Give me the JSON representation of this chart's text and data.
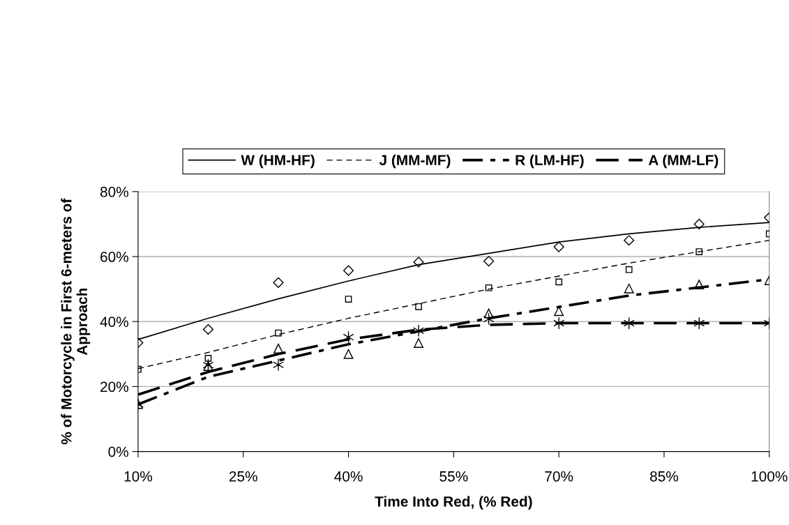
{
  "chart_data": {
    "type": "scatter",
    "xlabel": "Time Into Red, (% Red)",
    "ylabel": "% of Motorcycle in First 6-meters of\nApproach",
    "x": [
      10,
      20,
      30,
      40,
      50,
      60,
      70,
      80,
      90,
      100
    ],
    "xlim": [
      10,
      100
    ],
    "xticks": [
      {
        "value": 10,
        "label": "10%"
      },
      {
        "value": 25,
        "label": "25%"
      },
      {
        "value": 40,
        "label": "40%"
      },
      {
        "value": 55,
        "label": "55%"
      },
      {
        "value": 70,
        "label": "70%"
      },
      {
        "value": 85,
        "label": "85%"
      },
      {
        "value": 100,
        "label": "100%"
      }
    ],
    "ylim": [
      0,
      80
    ],
    "yticks": [
      {
        "value": 0,
        "label": "0%"
      },
      {
        "value": 20,
        "label": "20%"
      },
      {
        "value": 40,
        "label": "40%"
      },
      {
        "value": 60,
        "label": "60%"
      },
      {
        "value": 80,
        "label": "80%"
      }
    ],
    "grid": "y",
    "legend": "top",
    "series": [
      {
        "marker": "diamond",
        "color": "#000000",
        "values": [
          33.5,
          37.6,
          52.0,
          55.7,
          58.3,
          58.6,
          63,
          65,
          70,
          72
        ]
      },
      {
        "marker": "square",
        "color": "#000000",
        "values": [
          25.3,
          28.7,
          36.5,
          46.9,
          44.6,
          50.4,
          52.2,
          56.0,
          61.5,
          67
        ]
      },
      {
        "marker": "triangle",
        "color": "#000000",
        "values": [
          14.6,
          26.3,
          31.7,
          30.0,
          33.4,
          42.5,
          43.2,
          50.2,
          51.4,
          52.7
        ]
      },
      {
        "marker": "cross",
        "color": "#000000",
        "values": [
          14.5,
          26.6,
          26.7,
          35.2,
          37.2,
          40.8,
          39.5,
          39.5,
          39.5,
          39.5
        ]
      },
      {
        "type": "line",
        "name": "W (HM-HF)",
        "line_style": "solid",
        "color": "#000000",
        "values": [
          34.5,
          41,
          47,
          52.5,
          57.5,
          61,
          64.5,
          67,
          69,
          70.5
        ]
      },
      {
        "type": "line",
        "name": "J (MM-MF)",
        "line_style": "dashed",
        "color": "#000000",
        "values": [
          25.5,
          30.5,
          36,
          41,
          45.5,
          50,
          54,
          58,
          61.5,
          65
        ]
      },
      {
        "type": "line",
        "name": "R (LM-HF)",
        "line_style": "dashdot",
        "color": "#000000",
        "values": [
          14.5,
          23,
          28,
          33,
          37,
          41,
          44.5,
          48,
          50.5,
          53
        ]
      },
      {
        "type": "line",
        "name": "A (MM-LF)",
        "line_style": "longdash",
        "color": "#000000",
        "values": [
          17.5,
          24.5,
          30,
          34.5,
          37.5,
          39,
          39.5,
          39.5,
          39.5,
          39.5
        ]
      }
    ]
  }
}
